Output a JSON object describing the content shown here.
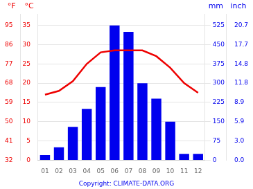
{
  "chart_data": {
    "type": "bar",
    "categories": [
      "01",
      "02",
      "03",
      "04",
      "05",
      "06",
      "07",
      "08",
      "09",
      "10",
      "11",
      "12"
    ],
    "series": [
      {
        "type": "bar",
        "color": "#0000ee",
        "axis": "y2",
        "values": [
          20,
          50,
          130,
          200,
          285,
          525,
          500,
          300,
          240,
          150,
          25,
          25
        ]
      },
      {
        "type": "line",
        "color": "#ee0000",
        "values": [
          17.0,
          18.0,
          20.5,
          25.0,
          28.0,
          28.5,
          28.5,
          28.5,
          27.0,
          24.0,
          20.0,
          17.5
        ]
      }
    ],
    "ylabel": "°C",
    "ylim": [
      0,
      38
    ],
    "yticks": [
      0,
      5,
      10,
      15,
      20,
      25,
      30,
      35
    ],
    "y2label": "mm",
    "y2lim": [
      0,
      570
    ],
    "y2ticks": [
      0,
      75,
      150,
      225,
      300,
      375,
      450,
      525
    ],
    "y3label": "°F",
    "y3lim": [
      0,
      38
    ],
    "y3ticks": [
      {
        "value": 0,
        "label": "32"
      },
      {
        "value": 5,
        "label": "41"
      },
      {
        "value": 10,
        "label": "50"
      },
      {
        "value": 15,
        "label": "59"
      },
      {
        "value": 20,
        "label": "68"
      },
      {
        "value": 25,
        "label": "77"
      },
      {
        "value": 30,
        "label": "86"
      },
      {
        "value": 35,
        "label": "95"
      }
    ],
    "y4label": "inch",
    "y4lim": [
      0,
      570
    ],
    "y4ticks": [
      {
        "value": 0,
        "label": "0.0"
      },
      {
        "value": 75,
        "label": "3.0"
      },
      {
        "value": 150,
        "label": "5.9"
      },
      {
        "value": 225,
        "label": "8.9"
      },
      {
        "value": 300,
        "label": "11.8"
      },
      {
        "value": 375,
        "label": "14.8"
      },
      {
        "value": 450,
        "label": "17.7"
      },
      {
        "value": 525,
        "label": "20.7"
      }
    ],
    "grid": true,
    "annotations": [
      "Copyright: CLIMATE-DATA.ORG"
    ]
  }
}
